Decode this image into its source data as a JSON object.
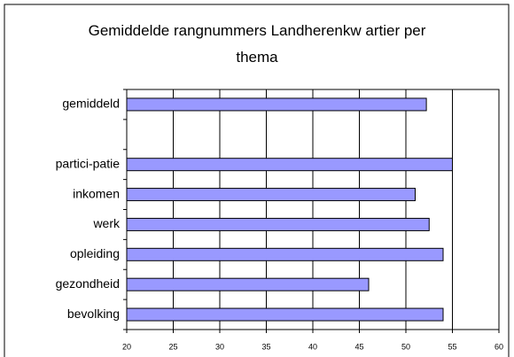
{
  "chart_data": {
    "type": "bar",
    "orientation": "horizontal",
    "title": "Gemiddelde rangnummers Landherenkw artier per thema",
    "categories": [
      "gemiddeld",
      null,
      "partici-patie",
      "inkomen",
      "werk",
      "opleiding",
      "gezondheid",
      "bevolking"
    ],
    "values": [
      52.2,
      null,
      55,
      51,
      52.5,
      54,
      46,
      54
    ],
    "color": "#9999ff",
    "xlim": [
      20,
      60
    ],
    "xticks": [
      20,
      25,
      30,
      35,
      40,
      45,
      50,
      55,
      60
    ],
    "grid": true
  }
}
